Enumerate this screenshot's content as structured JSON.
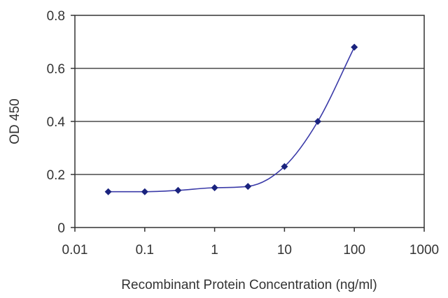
{
  "chart_data": {
    "type": "scatter",
    "title": "",
    "xlabel": "Recombinant Protein Concentration (ng/ml)",
    "ylabel": "OD 450",
    "x_scale": "log",
    "xlim": [
      0.01,
      1000
    ],
    "ylim": [
      0,
      0.8
    ],
    "x_ticks": [
      0.01,
      0.1,
      1,
      10,
      100,
      1000
    ],
    "x_tick_labels": [
      "0.01",
      "0.1",
      "1",
      "10",
      "100",
      "1000"
    ],
    "y_ticks": [
      0,
      0.2,
      0.4,
      0.6,
      0.8
    ],
    "y_tick_labels": [
      "0",
      "0.2",
      "0.4",
      "0.6",
      "0.8"
    ],
    "grid": "horizontal",
    "legend": "none",
    "series": [
      {
        "color": "#1a237e",
        "line_color": "#3a3aa8",
        "marker": "diamond",
        "fit": "smooth curve",
        "points": [
          {
            "x": 0.03,
            "y": 0.135
          },
          {
            "x": 0.1,
            "y": 0.135
          },
          {
            "x": 0.3,
            "y": 0.14
          },
          {
            "x": 1,
            "y": 0.15
          },
          {
            "x": 3,
            "y": 0.155
          },
          {
            "x": 10,
            "y": 0.23
          },
          {
            "x": 30,
            "y": 0.4
          },
          {
            "x": 100,
            "y": 0.68
          }
        ]
      }
    ]
  }
}
